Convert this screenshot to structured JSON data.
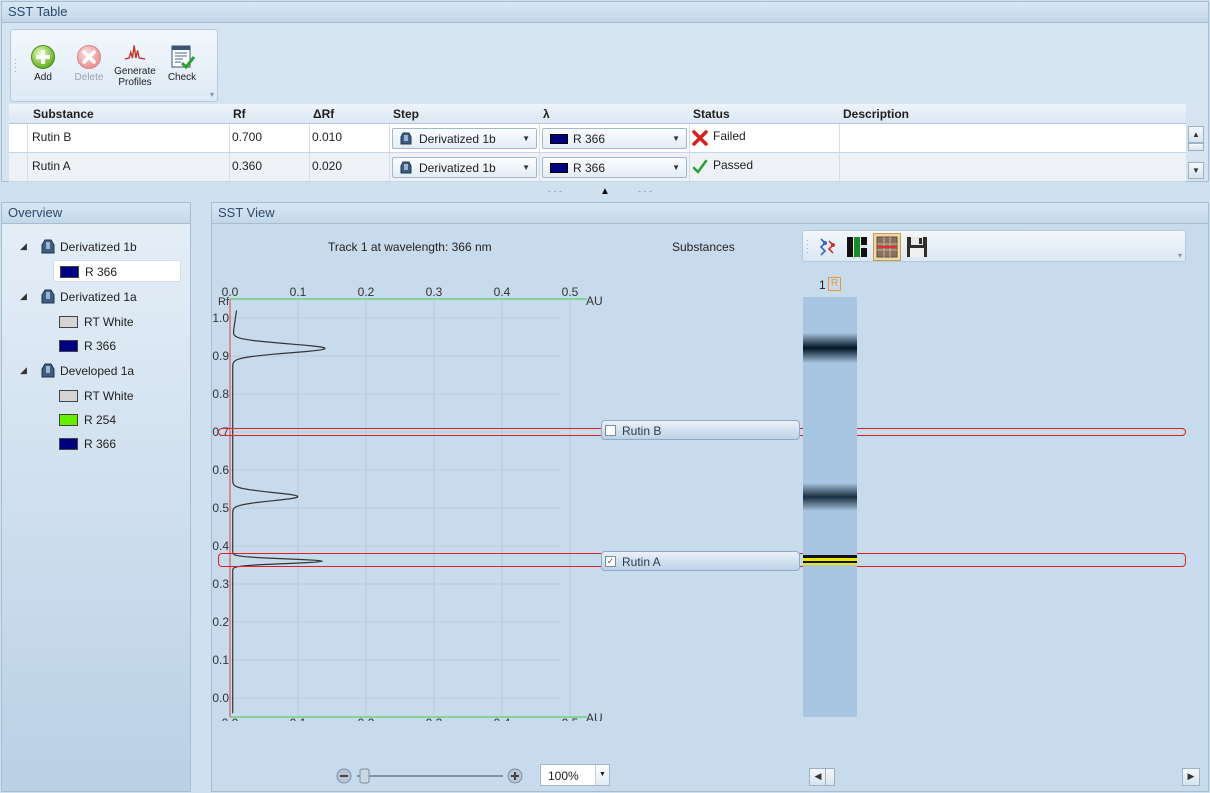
{
  "sst_table": {
    "title": "SST Table",
    "toolbar": {
      "add": "Add",
      "delete": "Delete",
      "generate": "Generate Profiles",
      "check": "Check"
    },
    "columns": [
      "Substance",
      "Rf",
      "ΔRf",
      "Step",
      "λ",
      "Status",
      "Description"
    ],
    "rows": [
      {
        "substance": "Rutin B",
        "rf": "0.700",
        "drf": "0.010",
        "step": "Derivatized 1b",
        "lambda": "R 366",
        "status": "Failed",
        "description": ""
      },
      {
        "substance": "Rutin A",
        "rf": "0.360",
        "drf": "0.020",
        "step": "Derivatized 1b",
        "lambda": "R 366",
        "status": "Passed",
        "description": ""
      }
    ]
  },
  "overview": {
    "title": "Overview",
    "groups": [
      {
        "label": "Derivatized 1b",
        "items": [
          {
            "label": "R 366",
            "color": "#000080",
            "selected": true
          }
        ]
      },
      {
        "label": "Derivatized 1a",
        "items": [
          {
            "label": "RT White",
            "color": "#d4d4d4"
          },
          {
            "label": "R 366",
            "color": "#000080"
          }
        ]
      },
      {
        "label": "Developed 1a",
        "items": [
          {
            "label": "RT White",
            "color": "#d4d4d4"
          },
          {
            "label": "R 254",
            "color": "#66ee00"
          },
          {
            "label": "R 366",
            "color": "#000080"
          }
        ]
      }
    ]
  },
  "sst_view": {
    "title": "SST View",
    "plot_title": "Track 1 at wavelength: 366 nm",
    "substances_label": "Substances",
    "track_label": "1",
    "track_badge": "R",
    "rf_axis_label": "Rf",
    "au_axis_label": "AU",
    "au_ticks": [
      "0.0",
      "0.1",
      "0.2",
      "0.3",
      "0.4",
      "0.5"
    ],
    "rf_ticks": [
      "1.0",
      "0.9",
      "0.8",
      "0.7",
      "0.6",
      "0.5",
      "0.4",
      "0.3",
      "0.2",
      "0.1",
      "0.0"
    ],
    "substances": [
      {
        "label": "Rutin B",
        "checked": false
      },
      {
        "label": "Rutin A",
        "checked": true
      }
    ],
    "zoom": "100%"
  }
}
